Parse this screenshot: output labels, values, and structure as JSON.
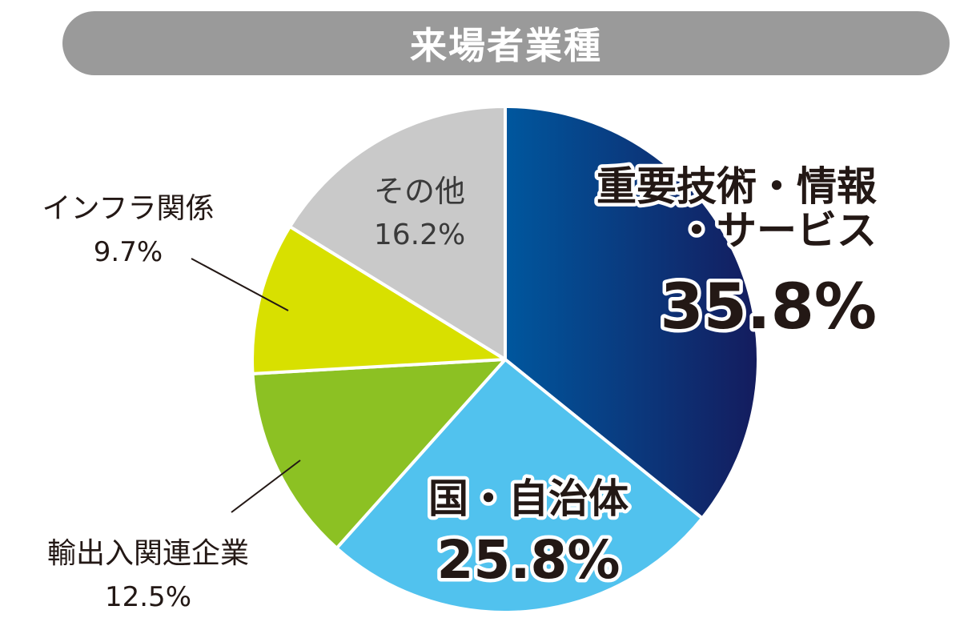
{
  "colors": {
    "title_bg": "#9a9a9a",
    "slice_1_start": "#00579e",
    "slice_1_end": "#141c5e",
    "slice_2": "#51c2ee",
    "slice_3": "#8cc123",
    "slice_4": "#d8e000",
    "slice_5": "#c9c9c9",
    "leader": "#231815"
  },
  "chart_data": {
    "type": "pie",
    "title": "来場者業種",
    "start_angle_deg": 0,
    "direction": "clockwise",
    "slices": [
      {
        "label_lines": [
          "重要技術・情報",
          "・サービス"
        ],
        "value": 35.8,
        "value_label": "35.8%",
        "color_key": "slice_1_start"
      },
      {
        "label_lines": [
          "国・自治体"
        ],
        "value": 25.8,
        "value_label": "25.8%",
        "color_key": "slice_2"
      },
      {
        "label_lines": [
          "輸出入関連企業"
        ],
        "value": 12.5,
        "value_label": "12.5%",
        "color_key": "slice_3"
      },
      {
        "label_lines": [
          "インフラ関係"
        ],
        "value": 9.7,
        "value_label": "9.7%",
        "color_key": "slice_4"
      },
      {
        "label_lines": [
          "その他"
        ],
        "value": 16.2,
        "value_label": "16.2%",
        "color_key": "slice_5"
      }
    ]
  }
}
